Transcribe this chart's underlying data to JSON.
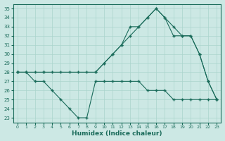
{
  "xlabel": "Humidex (Indice chaleur)",
  "bg_color": "#cce8e4",
  "line_color": "#1a6b5a",
  "grid_color": "#aad4cc",
  "xlim": [
    -0.5,
    23.5
  ],
  "ylim": [
    22.5,
    35.5
  ],
  "yticks": [
    23,
    24,
    25,
    26,
    27,
    28,
    29,
    30,
    31,
    32,
    33,
    34,
    35
  ],
  "xticks": [
    0,
    1,
    2,
    3,
    4,
    5,
    6,
    7,
    8,
    9,
    10,
    11,
    12,
    13,
    14,
    15,
    16,
    17,
    18,
    19,
    20,
    21,
    22,
    23
  ],
  "line1_x": [
    0,
    1,
    2,
    3,
    4,
    5,
    6,
    7,
    8,
    9,
    10,
    11,
    12,
    13,
    14,
    15,
    16,
    17,
    18,
    19,
    20,
    21,
    22,
    23
  ],
  "line1_y": [
    28,
    28,
    27,
    27,
    26,
    25,
    24,
    23,
    23,
    27,
    27,
    27,
    27,
    27,
    27,
    26,
    26,
    26,
    25,
    25,
    25,
    25,
    25,
    25
  ],
  "line2_x": [
    0,
    1,
    2,
    3,
    4,
    5,
    6,
    7,
    8,
    9,
    10,
    11,
    12,
    13,
    14,
    15,
    16,
    17,
    18,
    19,
    20,
    21,
    22,
    23
  ],
  "line2_y": [
    28,
    28,
    28,
    28,
    28,
    28,
    28,
    28,
    28,
    28,
    29,
    30,
    31,
    32,
    33,
    34,
    35,
    34,
    32,
    32,
    32,
    30,
    27,
    25
  ],
  "line3_x": [
    0,
    3,
    9,
    10,
    11,
    12,
    13,
    14,
    15,
    16,
    17,
    18,
    19,
    20,
    21,
    22,
    23
  ],
  "line3_y": [
    28,
    28,
    28,
    29,
    30,
    31,
    33,
    33,
    34,
    35,
    34,
    33,
    32,
    32,
    30,
    27,
    25
  ]
}
